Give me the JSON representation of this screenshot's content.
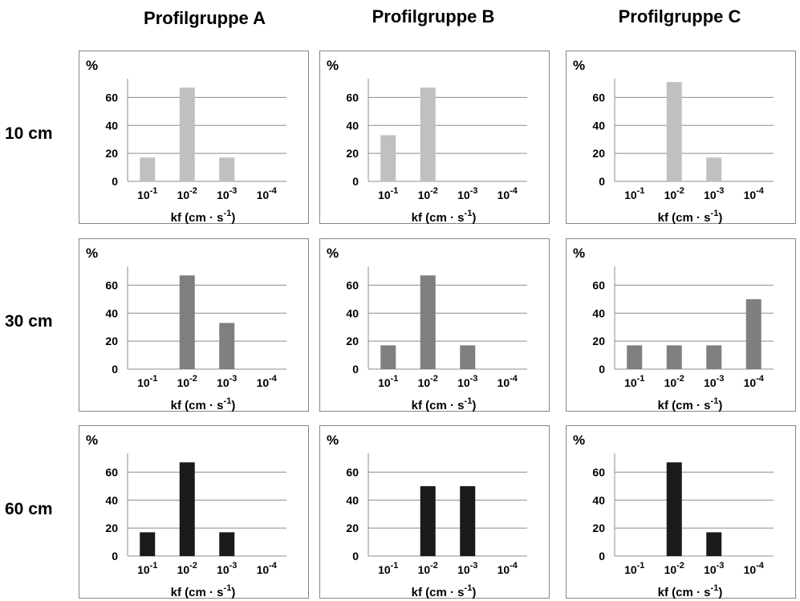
{
  "column_titles": [
    "Profilgruppe A",
    "Profilgruppe B",
    "Profilgruppe C"
  ],
  "row_titles": [
    "10 cm",
    "30 cm",
    "60 cm"
  ],
  "colors": {
    "10 cm": "#c0c0c0",
    "30 cm": "#7f7f7f",
    "60 cm": "#1a1a1a",
    "grid": "#8c8c8c",
    "frame": "#868686"
  },
  "chart_data": [
    {
      "type": "bar",
      "group": "Profilgruppe A",
      "depth": "10 cm",
      "ylabel": "%",
      "xlabel": "kf (cm · s-1)",
      "categories": [
        "10-1",
        "10-2",
        "10-3",
        "10-4"
      ],
      "values": [
        17,
        67,
        17,
        0
      ],
      "yticks": [
        0,
        20,
        40,
        60
      ],
      "ylim": [
        0,
        70
      ],
      "grid": true
    },
    {
      "type": "bar",
      "group": "Profilgruppe B",
      "depth": "10 cm",
      "ylabel": "%",
      "xlabel": "kf (cm · s-1)",
      "categories": [
        "10-1",
        "10-2",
        "10-3",
        "10-4"
      ],
      "values": [
        33,
        67,
        0,
        0
      ],
      "yticks": [
        0,
        20,
        40,
        60
      ],
      "ylim": [
        0,
        70
      ],
      "grid": true
    },
    {
      "type": "bar",
      "group": "Profilgruppe C",
      "depth": "10 cm",
      "ylabel": "%",
      "xlabel": "kf (cm · s-1)",
      "categories": [
        "10-1",
        "10-2",
        "10-3",
        "10-4"
      ],
      "values": [
        0,
        71,
        17,
        0
      ],
      "yticks": [
        0,
        20,
        40,
        60
      ],
      "ylim": [
        0,
        70
      ],
      "grid": true
    },
    {
      "type": "bar",
      "group": "Profilgruppe A",
      "depth": "30 cm",
      "ylabel": "%",
      "xlabel": "kf (cm · s-1)",
      "categories": [
        "10-1",
        "10-2",
        "10-3",
        "10-4"
      ],
      "values": [
        0,
        67,
        33,
        0
      ],
      "yticks": [
        0,
        20,
        40,
        60
      ],
      "ylim": [
        0,
        70
      ],
      "grid": true
    },
    {
      "type": "bar",
      "group": "Profilgruppe B",
      "depth": "30 cm",
      "ylabel": "%",
      "xlabel": "kf (cm · s-1)",
      "categories": [
        "10-1",
        "10-2",
        "10-3",
        "10-4"
      ],
      "values": [
        17,
        67,
        17,
        0
      ],
      "yticks": [
        0,
        20,
        40,
        60
      ],
      "ylim": [
        0,
        70
      ],
      "grid": true
    },
    {
      "type": "bar",
      "group": "Profilgruppe C",
      "depth": "30 cm",
      "ylabel": "%",
      "xlabel": "kf (cm · s-1)",
      "categories": [
        "10-1",
        "10-2",
        "10-3",
        "10-4"
      ],
      "values": [
        17,
        17,
        17,
        50
      ],
      "yticks": [
        0,
        20,
        40,
        60
      ],
      "ylim": [
        0,
        70
      ],
      "grid": true
    },
    {
      "type": "bar",
      "group": "Profilgruppe A",
      "depth": "60 cm",
      "ylabel": "%",
      "xlabel": "kf (cm · s-1)",
      "categories": [
        "10-1",
        "10-2",
        "10-3",
        "10-4"
      ],
      "values": [
        17,
        67,
        17,
        0
      ],
      "yticks": [
        0,
        20,
        40,
        60
      ],
      "ylim": [
        0,
        70
      ],
      "grid": true
    },
    {
      "type": "bar",
      "group": "Profilgruppe B",
      "depth": "60 cm",
      "ylabel": "%",
      "xlabel": "kf (cm · s-1)",
      "categories": [
        "10-1",
        "10-2",
        "10-3",
        "10-4"
      ],
      "values": [
        0,
        50,
        50,
        0
      ],
      "yticks": [
        0,
        20,
        40,
        60
      ],
      "ylim": [
        0,
        70
      ],
      "grid": true
    },
    {
      "type": "bar",
      "group": "Profilgruppe C",
      "depth": "60 cm",
      "ylabel": "%",
      "xlabel": "kf (cm · s-1)",
      "categories": [
        "10-1",
        "10-2",
        "10-3",
        "10-4"
      ],
      "values": [
        0,
        67,
        17,
        0
      ],
      "yticks": [
        0,
        20,
        40,
        60
      ],
      "ylim": [
        0,
        70
      ],
      "grid": true
    }
  ]
}
